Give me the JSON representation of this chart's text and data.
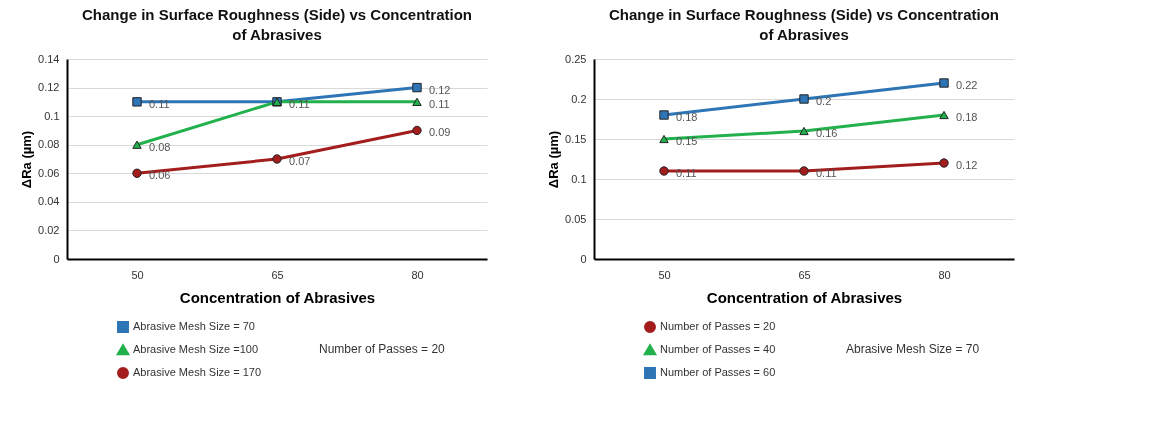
{
  "chart_data": [
    {
      "type": "line",
      "title": "Change in Surface Roughness (Side) vs Concentration of Abrasives",
      "xlabel": "Concentration of Abrasives",
      "ylabel": "ΔRa (µm)",
      "categories": [
        "50",
        "65",
        "80"
      ],
      "ylim": [
        0,
        0.14
      ],
      "yticks": [
        0,
        0.02,
        0.04,
        0.06,
        0.08,
        0.1,
        0.12,
        0.14
      ],
      "grid": "y",
      "legend": "bottom",
      "annotations": [
        "Number of Passes = 20"
      ],
      "series": [
        {
          "name": "Abrasive Mesh Size = 70",
          "color": "#2e75b6",
          "marker": "square",
          "values": [
            0.11,
            0.11,
            0.12
          ],
          "value_labels": [
            "0.11",
            "0.11",
            "0.12"
          ]
        },
        {
          "name": "Abrasive Mesh Size =100",
          "color": "#22b14c",
          "marker": "triangle",
          "values": [
            0.08,
            0.11,
            0.11
          ],
          "value_labels": [
            "0.08",
            null,
            "0.11"
          ]
        },
        {
          "name": "Abrasive Mesh Size = 170",
          "color": "#a31d1d",
          "marker": "circle",
          "values": [
            0.06,
            0.07,
            0.09
          ],
          "value_labels": [
            "0.06",
            "0.07",
            "0.09"
          ]
        }
      ]
    },
    {
      "type": "line",
      "title": "Change in Surface Roughness (Side) vs Concentration of Abrasives",
      "xlabel": "Concentration of Abrasives",
      "ylabel": "ΔRa (µm)",
      "categories": [
        "50",
        "65",
        "80"
      ],
      "ylim": [
        0,
        0.25
      ],
      "yticks": [
        0,
        0.05,
        0.1,
        0.15,
        0.2,
        0.25
      ],
      "grid": "y",
      "legend": "bottom",
      "data_labels": true,
      "annotations": [
        "Abrasive Mesh Size = 70"
      ],
      "series": [
        {
          "name": "Number of Passes = 20",
          "color": "#a31d1d",
          "marker": "circle",
          "values": [
            0.11,
            0.11,
            0.12
          ]
        },
        {
          "name": "Number of Passes = 40",
          "color": "#22b14c",
          "marker": "triangle",
          "values": [
            0.15,
            0.16,
            0.18
          ]
        },
        {
          "name": "Number of Passes = 60",
          "color": "#2e75b6",
          "marker": "square",
          "values": [
            0.18,
            0.2,
            0.22
          ]
        }
      ]
    }
  ]
}
